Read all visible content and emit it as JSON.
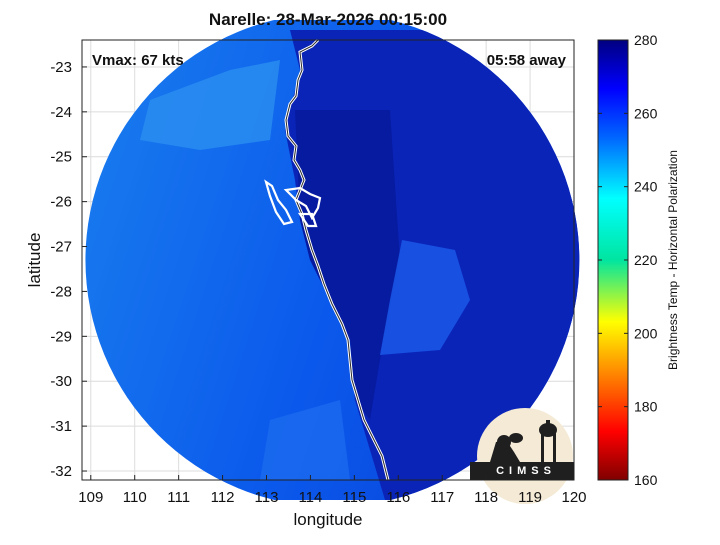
{
  "chart_data": {
    "type": "heatmap",
    "title": "Narelle: 28-Mar-2026 00:15:00",
    "xlabel": "longitude",
    "ylabel": "latitude",
    "xlim": [
      108.8,
      120.0
    ],
    "ylim": [
      -32.2,
      -22.4
    ],
    "xticks": [
      109,
      110,
      111,
      112,
      113,
      114,
      115,
      116,
      117,
      118,
      119,
      120
    ],
    "yticks": [
      -23,
      -24,
      -25,
      -26,
      -27,
      -28,
      -29,
      -30,
      -31,
      -32
    ],
    "grid": true,
    "annotations": {
      "top_left": "Vmax: 67 kts",
      "top_right": "05:58 away"
    },
    "colorbar": {
      "label": "Brightness Temp - Horizontal Polarization",
      "range": [
        160,
        280
      ],
      "ticks": [
        160,
        180,
        200,
        220,
        240,
        260,
        280
      ],
      "colormap": "jet"
    },
    "swath": {
      "center": [
        114.5,
        -27.3
      ],
      "radius_deg": 5.5
    },
    "regions": [
      {
        "name": "ocean-west",
        "value_range": [
          245,
          262
        ]
      },
      {
        "name": "land-east",
        "value_range": [
          263,
          275
        ]
      },
      {
        "name": "storm-core",
        "value_range": [
          255,
          262
        ]
      }
    ],
    "logo": "CIMSS"
  },
  "colors": {
    "ocean": "#0c5df0",
    "ocean_light": "#2e9cf2",
    "land": "#0a23b8",
    "land_dark": "#06128f",
    "coastline": "#ffffff"
  }
}
